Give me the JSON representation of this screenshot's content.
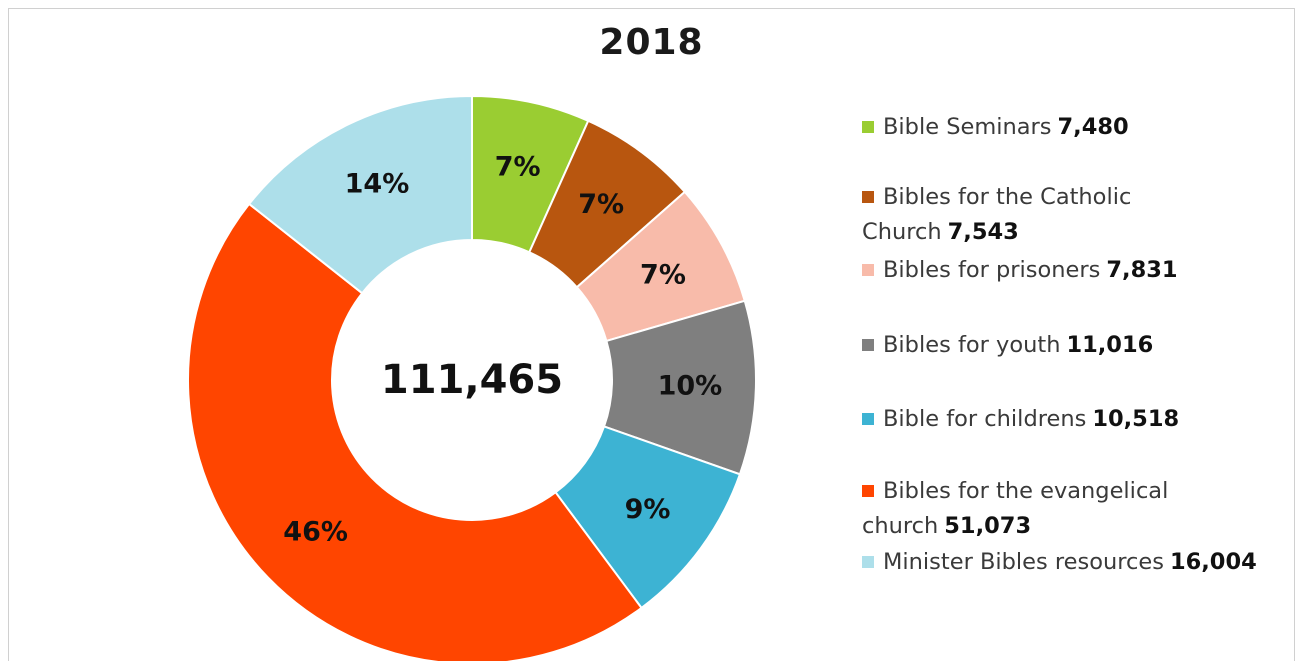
{
  "chart_data": {
    "type": "donut",
    "title": "2018",
    "center_label": "111,465",
    "legend_position": "right",
    "series": [
      {
        "name": "Bible Seminars",
        "value": 7480,
        "value_label": "7,480",
        "percent_label": "7%",
        "color": "#9ACD32"
      },
      {
        "name": "Bibles for the Catholic Church",
        "value": 7543,
        "value_label": "7,543",
        "percent_label": "7%",
        "color": "#B8560F"
      },
      {
        "name": "Bibles for prisoners",
        "value": 7831,
        "value_label": "7,831",
        "percent_label": "7%",
        "color": "#F8BBAA"
      },
      {
        "name": "Bibles for youth",
        "value": 11016,
        "value_label": "11,016",
        "percent_label": "10%",
        "color": "#7F7F7F"
      },
      {
        "name": "Bible for childrens",
        "value": 10518,
        "value_label": "10,518",
        "percent_label": "9%",
        "color": "#3DB3D3"
      },
      {
        "name": "Bibles for the evangelical church",
        "value": 51073,
        "value_label": "51,073",
        "percent_label": "46%",
        "color": "#FF4500"
      },
      {
        "name": "Minister Bibles resources",
        "value": 16004,
        "value_label": "16,004",
        "percent_label": "14%",
        "color": "#ADDFEA"
      }
    ]
  },
  "legend": {
    "items": [
      {
        "name": "Bible Seminars",
        "value": "7,480"
      },
      {
        "name": "Bibles for the Catholic Church",
        "value": "7,543"
      },
      {
        "name": "Bibles for prisoners",
        "value": "7,831"
      },
      {
        "name": "Bibles for youth",
        "value": "11,016"
      },
      {
        "name": "Bible for childrens",
        "value": "10,518"
      },
      {
        "name": "Bibles for the evangelical church",
        "value": "51,073"
      },
      {
        "name": "Minister Bibles resources",
        "value": "16,004"
      }
    ]
  }
}
